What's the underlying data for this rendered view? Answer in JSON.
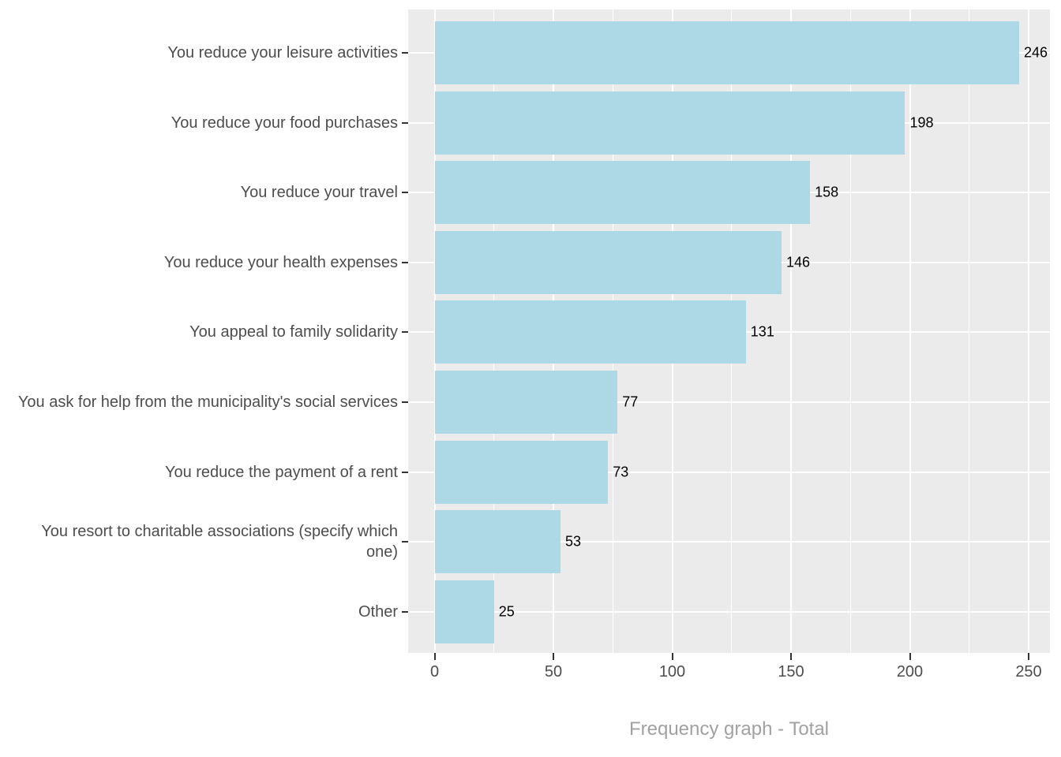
{
  "chart_data": {
    "type": "bar",
    "orientation": "horizontal",
    "title": "",
    "xlabel": "Frequency graph - Total",
    "ylabel": "",
    "categories": [
      "You reduce your leisure activities",
      "You reduce your food purchases",
      "You reduce your travel",
      "You reduce your health expenses",
      "You appeal to family solidarity",
      "You ask for help from the municipality's social services",
      "You reduce the payment of a rent",
      "You resort to charitable associations (specify which one)",
      "Other"
    ],
    "values": [
      246,
      198,
      158,
      146,
      131,
      77,
      73,
      53,
      25
    ],
    "value_labels": [
      "246",
      "198",
      "158",
      "146",
      "131",
      "77",
      "73",
      "53",
      "25"
    ],
    "xticks": [
      0,
      50,
      100,
      150,
      200,
      250
    ],
    "xtick_labels": [
      "0",
      "50",
      "100",
      "150",
      "200",
      "250"
    ],
    "xminor_ticks": [
      25,
      75,
      125,
      175,
      225
    ],
    "xlim": [
      0,
      250
    ],
    "grid": true,
    "legend_position": "none",
    "colors": {
      "bar_fill": "#ADD8E6",
      "panel_background": "#EBEBEB",
      "grid_line": "#FFFFFF",
      "axis_text": "#4D4D4D",
      "value_text": "#000000",
      "axis_title_text": "#A1A1A1",
      "tick_mark": "#333333",
      "page_background": "#FFFFFF"
    }
  }
}
